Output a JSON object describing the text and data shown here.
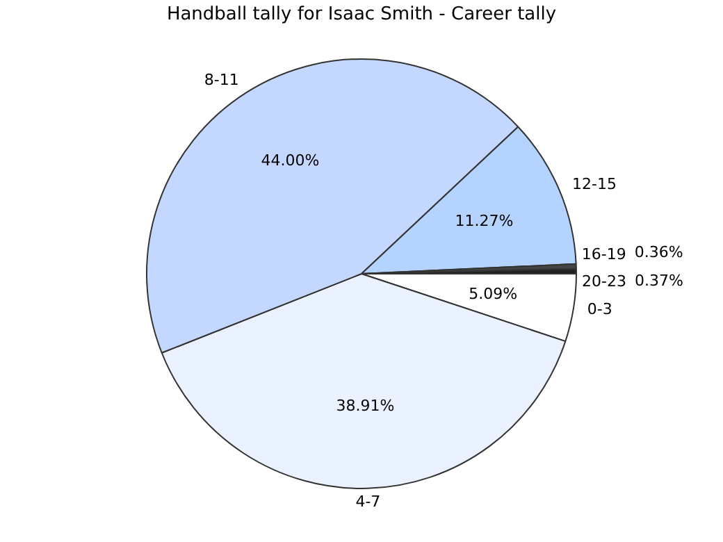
{
  "chart_data": {
    "type": "pie",
    "title": "Handball tally for Isaac Smith - Career tally",
    "categories": [
      "0-3",
      "4-7",
      "8-11",
      "12-15",
      "16-19",
      "20-23"
    ],
    "values": [
      5.09,
      38.91,
      44.0,
      11.27,
      0.36,
      0.37
    ],
    "value_labels": [
      "5.09%",
      "38.91%",
      "44.00%",
      "11.27%",
      "0.36%",
      "0.37%"
    ],
    "colors": [
      "#ffffff",
      "#eaf1ff",
      "#c4d8ff",
      "#b4d4ff",
      "#444444",
      "#222222"
    ],
    "legend": false
  }
}
